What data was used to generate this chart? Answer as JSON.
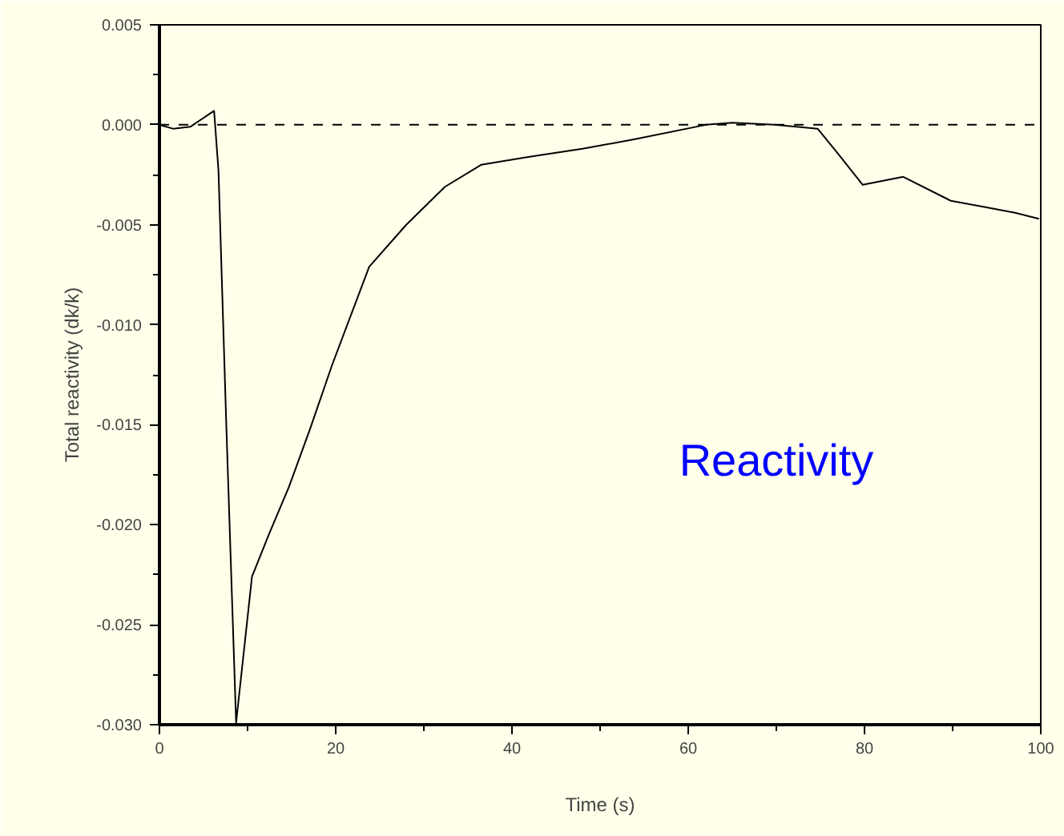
{
  "chart_data": {
    "type": "line",
    "xlabel": "Time (s)",
    "ylabel": "Total reactivity (dk/k)",
    "x": [
      0,
      1.6,
      3.5,
      6.2,
      6.7,
      7.6,
      8.7,
      10.5,
      12.4,
      14.7,
      17.1,
      19.6,
      23.8,
      28,
      32.4,
      36.5,
      42,
      48,
      54.2,
      62,
      65,
      69.8,
      74.7,
      77.1,
      79.8,
      84.4,
      89.8,
      93.5,
      97.1,
      99.8
    ],
    "series": [
      {
        "color": "#000000",
        "values": [
          0,
          -0.0002,
          -0.0001,
          0.0007,
          -0.0023,
          -0.0152,
          -0.0299,
          -0.0226,
          -0.0205,
          -0.0181,
          -0.0152,
          -0.012,
          -0.0071,
          -0.005,
          -0.0031,
          -0.002,
          -0.0016,
          -0.0012,
          -0.0007,
          0,
          0.0001,
          0,
          -0.0002,
          -0.0015,
          -0.003,
          -0.0026,
          -0.0038,
          -0.0041,
          -0.0044,
          -0.0047
        ]
      }
    ],
    "xlim": [
      0,
      100
    ],
    "ylim": [
      -0.03,
      0.005
    ],
    "xticks": [
      0,
      20,
      40,
      60,
      80,
      100
    ],
    "yticks": [
      {
        "value": 0.005,
        "label": "0.005"
      },
      {
        "value": 0,
        "label": "0.000"
      },
      {
        "value": -0.005,
        "label": "-0.005"
      },
      {
        "value": -0.01,
        "label": "-0.010"
      },
      {
        "value": -0.015,
        "label": "-0.015"
      },
      {
        "value": -0.02,
        "label": "-0.020"
      },
      {
        "value": -0.025,
        "label": "-0.025"
      },
      {
        "value": -0.03,
        "label": "-0.030"
      }
    ],
    "ref_lines": [
      {
        "axis": "y",
        "value": 0,
        "color": "#000000",
        "line_style": "dashed"
      }
    ],
    "annotations": [
      "Reactivity"
    ],
    "grid": false,
    "marker": "none",
    "line_style": "solid"
  }
}
